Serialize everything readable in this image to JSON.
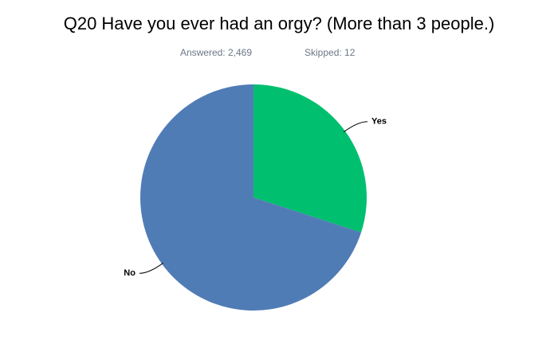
{
  "chart_data": {
    "type": "pie",
    "title": "Q20 Have you ever had an orgy? (More than 3 people.)",
    "subtitle": [
      "Answered: 2,469",
      "Skipped: 12"
    ],
    "categories": [
      "Yes",
      "No"
    ],
    "values": [
      30,
      70
    ],
    "colors": [
      "#00bf6f",
      "#507cb6"
    ]
  }
}
